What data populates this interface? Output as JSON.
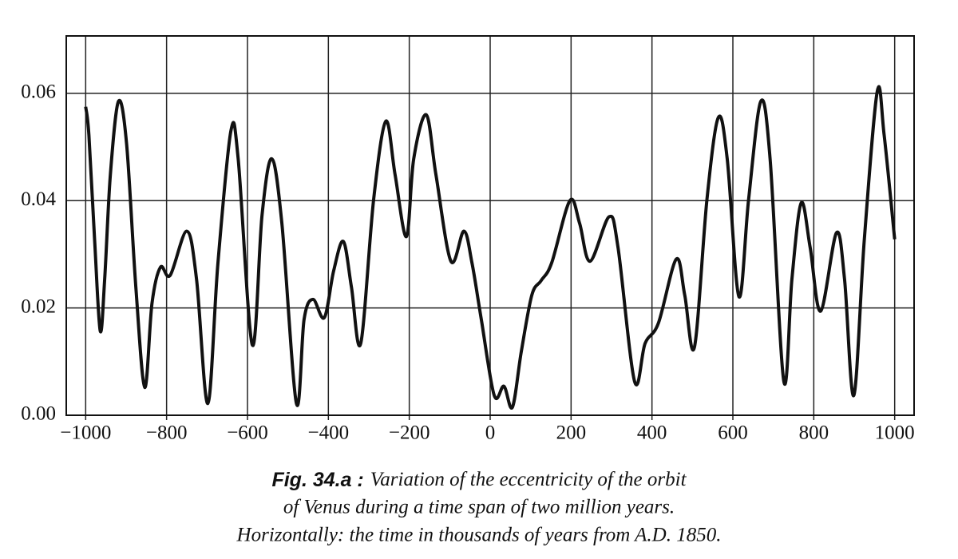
{
  "chart_data": {
    "type": "line",
    "x": [
      -1000,
      -992,
      -978,
      -964,
      -953,
      -939,
      -919,
      -899,
      -876,
      -854,
      -836,
      -815,
      -791,
      -750,
      -726,
      -698,
      -673,
      -641,
      -623,
      -588,
      -564,
      -540,
      -515,
      -479,
      -460,
      -438,
      -410,
      -387,
      -363,
      -343,
      -320,
      -288,
      -258,
      -235,
      -207,
      -189,
      -158,
      -134,
      -97,
      -65,
      -45,
      -22,
      10,
      34,
      55,
      77,
      103,
      126,
      152,
      197,
      221,
      247,
      294,
      316,
      357,
      383,
      416,
      460,
      481,
      505,
      536,
      564,
      586,
      615,
      639,
      669,
      692,
      726,
      746,
      769,
      791,
      817,
      856,
      876,
      899,
      925,
      957,
      974,
      1000
    ],
    "series": [
      {
        "color": "#111111",
        "values": [
          0.0575,
          0.0522,
          0.0328,
          0.0157,
          0.0254,
          0.0448,
          0.0585,
          0.0507,
          0.0239,
          0.0052,
          0.0209,
          0.0276,
          0.0261,
          0.0343,
          0.0254,
          0.0022,
          0.0284,
          0.053,
          0.0478,
          0.0131,
          0.0373,
          0.0478,
          0.0358,
          0.0022,
          0.0179,
          0.0216,
          0.0182,
          0.0269,
          0.0324,
          0.0239,
          0.0134,
          0.0403,
          0.0548,
          0.0448,
          0.0333,
          0.0478,
          0.056,
          0.0448,
          0.0287,
          0.0343,
          0.0284,
          0.0179,
          0.0037,
          0.0054,
          0.0015,
          0.0119,
          0.0224,
          0.0251,
          0.0284,
          0.04,
          0.0358,
          0.0287,
          0.037,
          0.0313,
          0.0063,
          0.0134,
          0.0172,
          0.0291,
          0.0224,
          0.0127,
          0.0403,
          0.0555,
          0.0478,
          0.0221,
          0.0403,
          0.0585,
          0.0478,
          0.0063,
          0.0254,
          0.0396,
          0.0313,
          0.0194,
          0.034,
          0.0254,
          0.0037,
          0.0328,
          0.0604,
          0.0522,
          0.0328
        ]
      }
    ],
    "xlim": [
      -1048,
      1048
    ],
    "ylim": [
      0,
      0.0707
    ],
    "xticks": [
      {
        "value": -1000,
        "label": "−1000"
      },
      {
        "value": -800,
        "label": "−800"
      },
      {
        "value": -600,
        "label": "−600"
      },
      {
        "value": -400,
        "label": "−400"
      },
      {
        "value": -200,
        "label": "−200"
      },
      0,
      200,
      400,
      600,
      800,
      1000
    ],
    "yticks": [
      {
        "value": 0,
        "label": "0.00"
      },
      {
        "value": 0.02,
        "label": "0.02"
      },
      {
        "value": 0.04,
        "label": "0.04"
      },
      {
        "value": 0.06,
        "label": "0.06"
      }
    ],
    "grid": true,
    "caption": {
      "label": "Fig. 34.a :",
      "lines": [
        "Variation of the eccentricity of the orbit",
        "of Venus during a time span of two million years.",
        "Horizontally: the time in thousands of years from A.D. 1850."
      ]
    }
  }
}
